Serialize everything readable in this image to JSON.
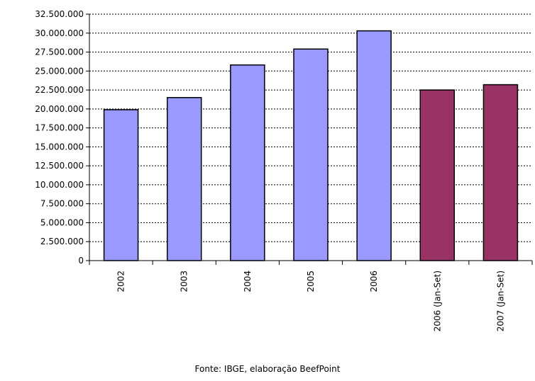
{
  "chart_data": {
    "type": "bar",
    "categories": [
      "2002",
      "2003",
      "2004",
      "2005",
      "2006",
      "2006 (Jan-Set)",
      "2007 (Jan-Set)"
    ],
    "values": [
      19900000,
      21500000,
      25800000,
      27900000,
      30300000,
      22500000,
      23200000
    ],
    "bar_colors": [
      "#9999ff",
      "#9999ff",
      "#9999ff",
      "#9999ff",
      "#9999ff",
      "#993366",
      "#993366"
    ],
    "y_ticks": [
      "0",
      "2.500.000",
      "5.000.000",
      "7.500.000",
      "10.000.000",
      "12.500.000",
      "15.000.000",
      "17.500.000",
      "20.000.000",
      "22.500.000",
      "25.000.000",
      "27.500.000",
      "30.000.000",
      "32.500.000"
    ],
    "ylim": [
      0,
      32500000
    ],
    "grid": true,
    "title": "",
    "xlabel": "",
    "ylabel": ""
  },
  "source_note": "Fonte: IBGE, elaboração BeefPoint"
}
